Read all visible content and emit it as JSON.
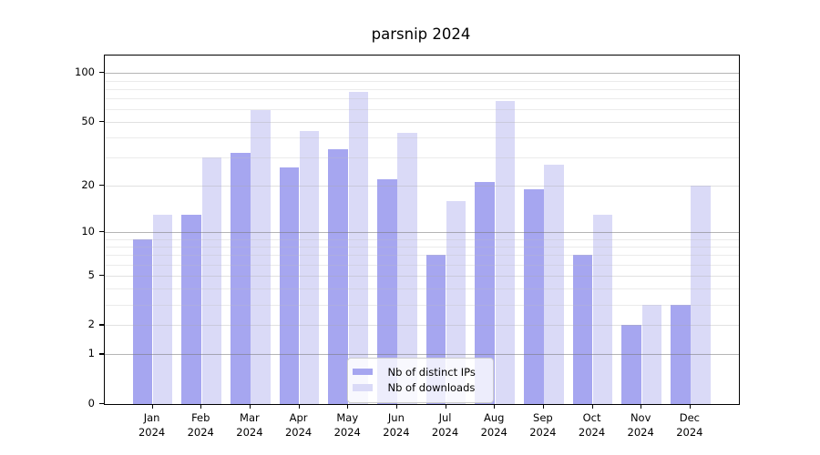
{
  "chart_data": {
    "type": "bar",
    "title": "parsnip 2024",
    "categories": [
      "Jan 2024",
      "Feb 2024",
      "Mar 2024",
      "Apr 2024",
      "May 2024",
      "Jun 2024",
      "Jul 2024",
      "Aug 2024",
      "Sep 2024",
      "Oct 2024",
      "Nov 2024",
      "Dec 2024"
    ],
    "series": [
      {
        "name": "Nb of distinct IPs",
        "color": "#a6a6f0",
        "values": [
          9,
          13,
          32,
          26,
          34,
          22,
          7,
          21,
          19,
          7,
          2,
          3
        ]
      },
      {
        "name": "Nb of downloads",
        "color": "#dadaf7",
        "values": [
          13,
          30,
          59,
          44,
          77,
          43,
          16,
          67,
          27,
          13,
          3,
          20
        ]
      }
    ],
    "xlabel": "",
    "ylabel": "",
    "y_axis": {
      "scale": "log1p",
      "ylim": [
        0,
        128
      ],
      "ticks": [
        0,
        1,
        2,
        5,
        10,
        20,
        50,
        100
      ],
      "decade_gridlines": [
        1,
        10,
        100
      ],
      "mid_gridlines": [
        2,
        5,
        20,
        50
      ],
      "minor_gridlines": [
        3,
        4,
        6,
        7,
        8,
        9,
        30,
        40,
        60,
        70,
        80,
        90
      ]
    },
    "grid": true,
    "legend_position": "lower center",
    "colors": {
      "spine": "#000000",
      "decade_grid": "rgba(120,120,120,0.55)",
      "mid_grid": "rgba(170,170,170,0.35)",
      "minor_grid": "rgba(190,190,190,0.30)",
      "legend_border": "#cccccc"
    }
  }
}
